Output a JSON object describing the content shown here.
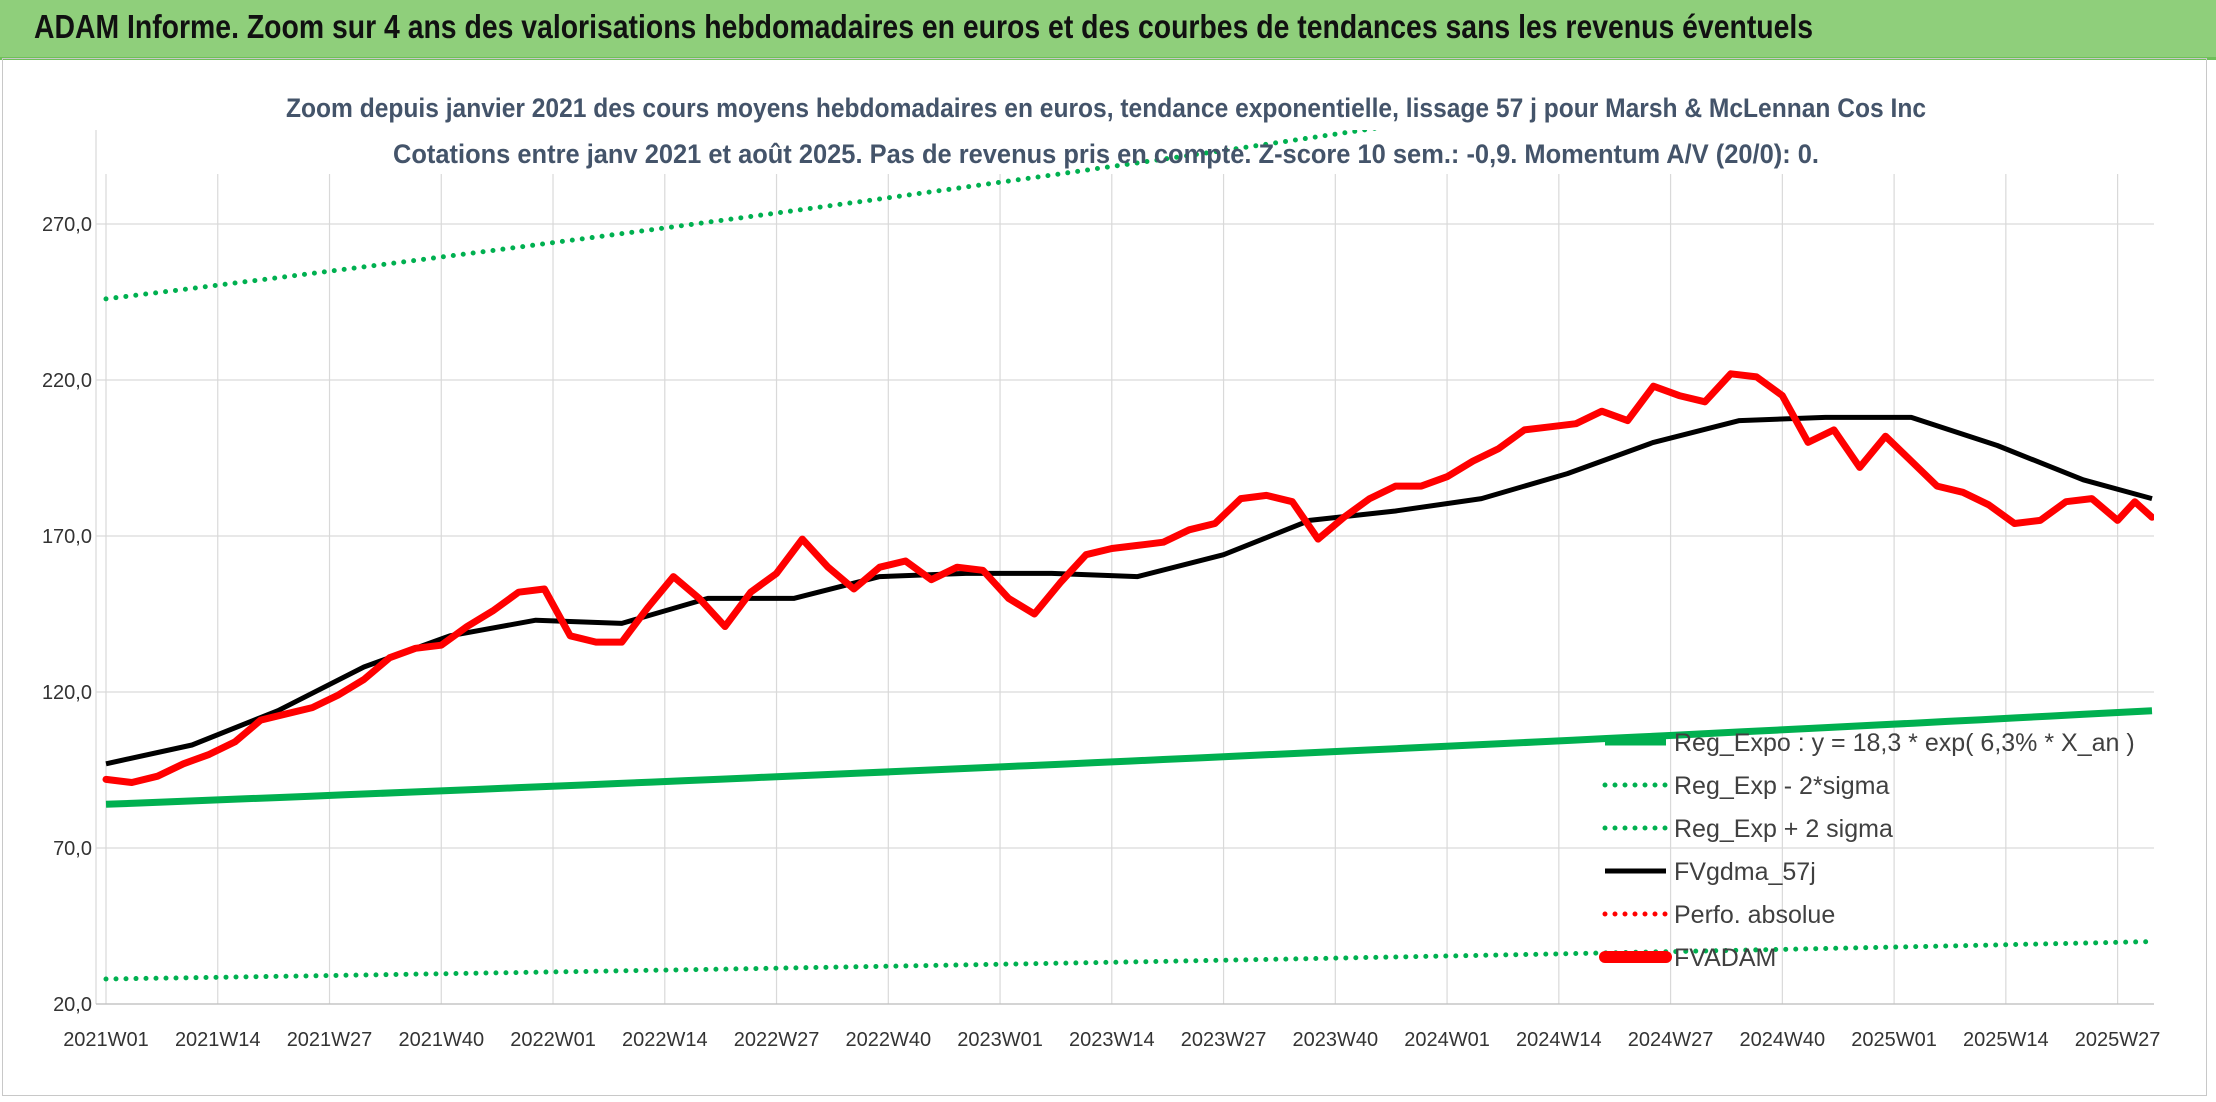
{
  "header": {
    "title": "ADAM Informe. Zoom sur 4 ans des valorisations hebdomadaires en euros et des courbes de tendances sans les revenus éventuels"
  },
  "chart_data": {
    "type": "line",
    "title": "Zoom depuis janvier 2021 des cours moyens hebdomadaires en euros, tendance exponentielle, lissage 57 j pour Marsh & McLennan Cos Inc",
    "subtitle": "Cotations entre janv 2021 et août 2025. Pas de revenus pris en compte. Z-score 10 sem.: -0,9. Momentum A/V (20/0): 0.",
    "ylim": [
      20,
      295
    ],
    "yticks": [
      "20,0",
      "70,0",
      "120,0",
      "170,0",
      "220,0",
      "270,0"
    ],
    "ytick_values": [
      20,
      70,
      120,
      170,
      220,
      270
    ],
    "xtick_labels": [
      "2021W01",
      "2021W14",
      "2021W27",
      "2021W40",
      "2022W01",
      "2022W14",
      "2022W27",
      "2022W40",
      "2023W01",
      "2023W14",
      "2023W27",
      "2023W40",
      "2024W01",
      "2024W14",
      "2024W27",
      "2024W40",
      "2025W01",
      "2025W14",
      "2025W27"
    ],
    "n_weeks": 239,
    "grid": "on",
    "legend_position": "bottom-right",
    "series": [
      {
        "name": "Reg_Expo : y = 18,3 * exp( 6,3% * X_an )",
        "color": "#00b050",
        "style": "solid",
        "x": [
          0,
          238
        ],
        "y": [
          84,
          114
        ]
      },
      {
        "name": "Reg_Exp - 2*sigma",
        "color": "#00b050",
        "style": "dotted",
        "x": [
          0,
          238
        ],
        "y": [
          28,
          40
        ]
      },
      {
        "name": "Reg_Exp + 2 sigma",
        "color": "#00b050",
        "style": "dotted",
        "x": [
          0,
          238
        ],
        "y": [
          246,
          340
        ]
      },
      {
        "name": "FVgdma_57j",
        "color": "#000000",
        "style": "solid",
        "x": [
          0,
          10,
          20,
          30,
          40,
          50,
          60,
          70,
          80,
          90,
          100,
          110,
          120,
          130,
          140,
          150,
          160,
          170,
          180,
          190,
          200,
          210,
          220,
          230,
          238
        ],
        "y": [
          97,
          103,
          114,
          128,
          138,
          143,
          142,
          150,
          150,
          157,
          158,
          158,
          157,
          164,
          175,
          178,
          182,
          190,
          200,
          207,
          208,
          208,
          199,
          188,
          182
        ]
      },
      {
        "name": "Perfo. absolue",
        "color": "#ff0000",
        "style": "dotted",
        "x": [],
        "y": []
      },
      {
        "name": "FVADAM",
        "color": "#ff0000",
        "style": "solid",
        "x": [
          0,
          3,
          6,
          9,
          12,
          15,
          18,
          21,
          24,
          27,
          30,
          33,
          36,
          39,
          42,
          45,
          48,
          51,
          54,
          57,
          60,
          63,
          66,
          69,
          72,
          75,
          78,
          81,
          84,
          87,
          90,
          93,
          96,
          99,
          102,
          105,
          108,
          111,
          114,
          117,
          120,
          123,
          126,
          129,
          132,
          135,
          138,
          141,
          144,
          147,
          150,
          153,
          156,
          159,
          162,
          165,
          168,
          171,
          174,
          177,
          180,
          183,
          186,
          189,
          192,
          195,
          198,
          201,
          204,
          207,
          210,
          213,
          216,
          219,
          222,
          225,
          228,
          231,
          234,
          236,
          238
        ],
        "y": [
          92,
          91,
          93,
          97,
          100,
          104,
          111,
          113,
          115,
          119,
          124,
          131,
          134,
          135,
          141,
          146,
          152,
          153,
          138,
          136,
          136,
          147,
          157,
          150,
          141,
          152,
          158,
          169,
          160,
          153,
          160,
          162,
          156,
          160,
          159,
          150,
          145,
          155,
          164,
          166,
          167,
          168,
          172,
          174,
          182,
          183,
          181,
          169,
          176,
          182,
          186,
          186,
          189,
          194,
          198,
          204,
          205,
          206,
          210,
          207,
          218,
          215,
          213,
          222,
          221,
          215,
          200,
          204,
          192,
          202,
          194,
          186,
          184,
          180,
          174,
          175,
          181,
          182,
          175,
          181,
          176
        ]
      }
    ]
  }
}
